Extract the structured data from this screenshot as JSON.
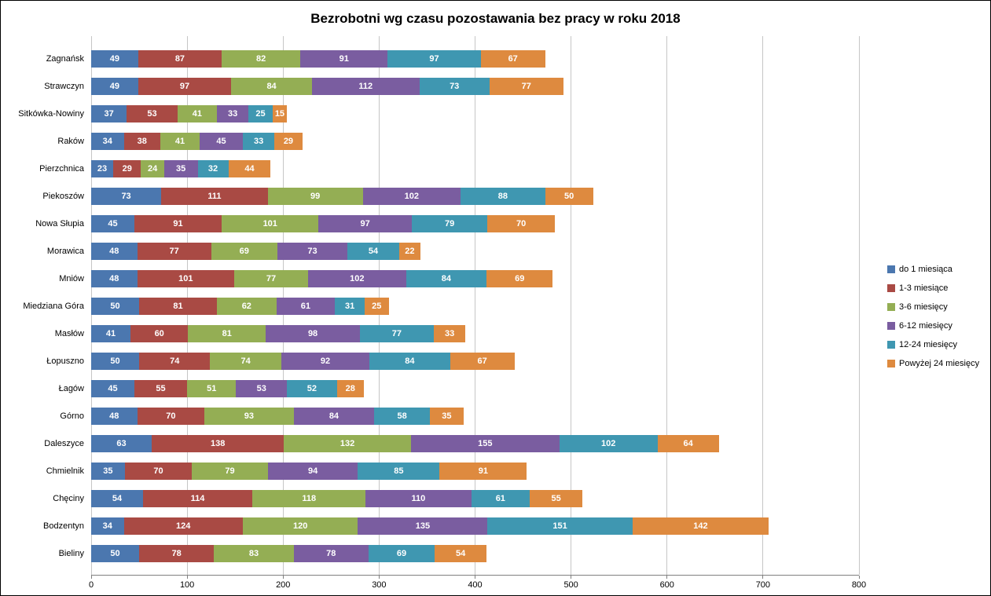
{
  "chart_data": {
    "type": "bar",
    "orientation": "horizontal",
    "stacked": true,
    "title": "Bezrobotni wg czasu pozostawania bez pracy w roku 2018",
    "xlabel": "",
    "ylabel": "",
    "xlim": [
      0,
      800
    ],
    "xticks": [
      0,
      100,
      200,
      300,
      400,
      500,
      600,
      700,
      800
    ],
    "grid": true,
    "legend_position": "right",
    "data_labels": true,
    "data_label_color": "#FFFFFF",
    "gridline_color": "#C6C6C6",
    "categories": [
      "Zagnańsk",
      "Strawczyn",
      "Sitkówka-Nowiny",
      "Raków",
      "Pierzchnica",
      "Piekoszów",
      "Nowa Słupia",
      "Morawica",
      "Mniów",
      "Miedziana Góra",
      "Masłów",
      "Łopuszno",
      "Łagów",
      "Górno",
      "Daleszyce",
      "Chmielnik",
      "Chęciny",
      "Bodzentyn",
      "Bieliny"
    ],
    "series": [
      {
        "name": "do 1 miesiąca",
        "color": "#4B77AF",
        "values": [
          49,
          49,
          37,
          34,
          23,
          73,
          45,
          48,
          48,
          50,
          41,
          50,
          45,
          48,
          63,
          35,
          54,
          34,
          50
        ]
      },
      {
        "name": "1-3 miesiące",
        "color": "#A94A44",
        "values": [
          87,
          97,
          53,
          38,
          29,
          111,
          91,
          77,
          101,
          81,
          60,
          74,
          55,
          70,
          138,
          70,
          114,
          124,
          78
        ]
      },
      {
        "name": "3-6 miesięcy",
        "color": "#94AE54",
        "values": [
          82,
          84,
          41,
          41,
          24,
          99,
          101,
          69,
          77,
          62,
          81,
          74,
          51,
          93,
          132,
          79,
          118,
          120,
          83
        ]
      },
      {
        "name": "6-12 miesięcy",
        "color": "#7A5DA0",
        "values": [
          91,
          112,
          33,
          45,
          35,
          102,
          97,
          73,
          102,
          61,
          98,
          92,
          53,
          84,
          155,
          94,
          110,
          135,
          78
        ]
      },
      {
        "name": "12-24 miesięcy",
        "color": "#3F97B1",
        "values": [
          97,
          73,
          25,
          33,
          32,
          88,
          79,
          54,
          84,
          31,
          77,
          84,
          52,
          58,
          102,
          85,
          61,
          151,
          69
        ]
      },
      {
        "name": "Powyżej 24 miesięcy",
        "color": "#DE8A3F",
        "values": [
          67,
          77,
          15,
          29,
          44,
          50,
          70,
          22,
          69,
          25,
          33,
          67,
          28,
          35,
          64,
          91,
          55,
          142,
          54
        ]
      }
    ]
  }
}
